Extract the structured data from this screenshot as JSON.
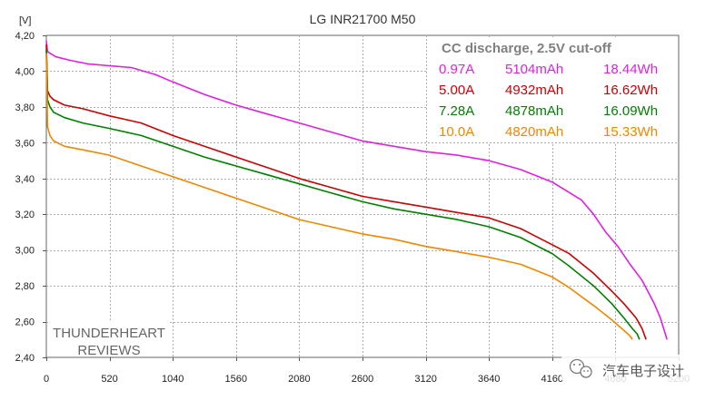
{
  "chart_data": {
    "type": "line",
    "title": "LG INR21700 M50",
    "y_unit_label": "[V]",
    "xlabel": "",
    "ylabel": "",
    "xlim": [
      0,
      5200
    ],
    "ylim": [
      2.4,
      4.2
    ],
    "x_tick_values": [
      0,
      520,
      1040,
      1560,
      2080,
      2600,
      3120,
      3640,
      4160,
      4680,
      5200
    ],
    "x_tick_labels": [
      "0",
      "520",
      "1040",
      "1560",
      "2080",
      "2600",
      "3120",
      "3640",
      "4160",
      "4680",
      "5200"
    ],
    "y_tick_values": [
      2.4,
      2.6,
      2.8,
      3.0,
      3.2,
      3.4,
      3.6,
      3.8,
      4.0,
      4.2
    ],
    "y_tick_labels": [
      "2,40",
      "2,60",
      "2,80",
      "3,00",
      "3,20",
      "3,40",
      "3,60",
      "3,80",
      "4,00",
      "4,20"
    ],
    "grid": true,
    "legend": {
      "placement": "top-right",
      "header": "CC discharge, 2.5V cut-off",
      "rows": [
        {
          "current": "0.97A",
          "capacity": "5104mAh",
          "energy": "18.44Wh",
          "color": "#e020e0"
        },
        {
          "current": "5.00A",
          "capacity": "4932mAh",
          "energy": "16.62Wh",
          "color": "#cc0000"
        },
        {
          "current": "7.28A",
          "capacity": "4878mAh",
          "energy": "16.09Wh",
          "color": "#008000"
        },
        {
          "current": "10.0A",
          "capacity": "4820mAh",
          "energy": "15.33Wh",
          "color": "#ee8800"
        }
      ]
    },
    "series": [
      {
        "name": "0.97A",
        "color": "#e020e0",
        "x": [
          0,
          10,
          30,
          80,
          200,
          350,
          520,
          700,
          900,
          1040,
          1300,
          1560,
          1820,
          2080,
          2340,
          2600,
          2860,
          3120,
          3380,
          3640,
          3900,
          4160,
          4400,
          4500,
          4600,
          4700,
          4800,
          4900,
          5000,
          5050,
          5104
        ],
        "y": [
          4.17,
          4.11,
          4.1,
          4.08,
          4.06,
          4.04,
          4.03,
          4.02,
          3.98,
          3.94,
          3.87,
          3.81,
          3.76,
          3.71,
          3.66,
          3.61,
          3.58,
          3.55,
          3.53,
          3.5,
          3.45,
          3.38,
          3.28,
          3.2,
          3.1,
          3.02,
          2.92,
          2.83,
          2.7,
          2.62,
          2.5
        ]
      },
      {
        "name": "5.00A",
        "color": "#cc0000",
        "x": [
          0,
          10,
          30,
          60,
          150,
          300,
          520,
          780,
          1040,
          1300,
          1560,
          1820,
          2080,
          2340,
          2600,
          2860,
          3120,
          3380,
          3640,
          3900,
          4160,
          4300,
          4500,
          4650,
          4750,
          4850,
          4900,
          4932
        ],
        "y": [
          4.15,
          3.89,
          3.86,
          3.84,
          3.81,
          3.79,
          3.75,
          3.71,
          3.64,
          3.58,
          3.52,
          3.46,
          3.4,
          3.35,
          3.3,
          3.27,
          3.24,
          3.21,
          3.18,
          3.12,
          3.03,
          2.98,
          2.87,
          2.77,
          2.7,
          2.62,
          2.56,
          2.5
        ]
      },
      {
        "name": "7.28A",
        "color": "#008000",
        "x": [
          0,
          10,
          30,
          60,
          150,
          300,
          520,
          780,
          1040,
          1300,
          1560,
          1820,
          2080,
          2340,
          2600,
          2860,
          3120,
          3380,
          3640,
          3900,
          4160,
          4300,
          4500,
          4650,
          4750,
          4820,
          4860,
          4878
        ],
        "y": [
          4.12,
          3.84,
          3.8,
          3.77,
          3.74,
          3.71,
          3.68,
          3.64,
          3.58,
          3.52,
          3.47,
          3.42,
          3.37,
          3.32,
          3.27,
          3.23,
          3.2,
          3.17,
          3.13,
          3.07,
          2.98,
          2.91,
          2.8,
          2.7,
          2.62,
          2.56,
          2.53,
          2.5
        ]
      },
      {
        "name": "10.0A",
        "color": "#ee8800",
        "x": [
          0,
          10,
          30,
          60,
          150,
          300,
          520,
          780,
          1040,
          1300,
          1560,
          1820,
          2080,
          2340,
          2600,
          2860,
          3120,
          3380,
          3640,
          3900,
          4160,
          4300,
          4500,
          4650,
          4750,
          4800,
          4820
        ],
        "y": [
          4.1,
          3.69,
          3.64,
          3.61,
          3.58,
          3.56,
          3.53,
          3.47,
          3.41,
          3.35,
          3.29,
          3.23,
          3.17,
          3.13,
          3.09,
          3.06,
          3.02,
          2.99,
          2.96,
          2.92,
          2.85,
          2.79,
          2.69,
          2.61,
          2.55,
          2.52,
          2.5
        ]
      }
    ],
    "annotations": [
      "THUNDERHEART",
      "REVIEWS"
    ],
    "watermark": "汽车电子设计"
  }
}
